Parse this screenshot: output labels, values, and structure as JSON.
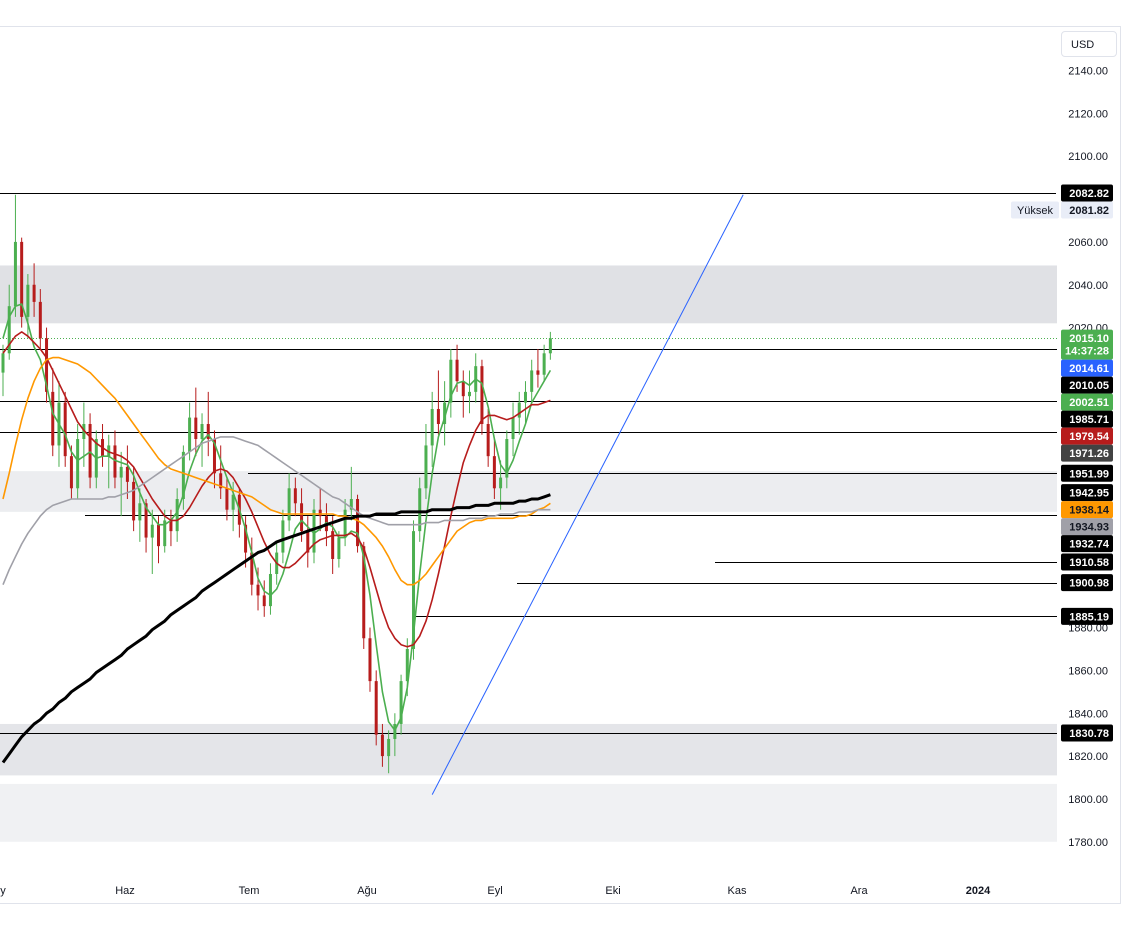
{
  "currency": "USD",
  "chart_data": {
    "type": "candlestick",
    "y_axis": {
      "min": 1780,
      "max": 2140,
      "ticks": [
        2140,
        2120,
        2100,
        2080,
        2060,
        2040,
        2020,
        2000,
        1980,
        1960,
        1940,
        1920,
        1900,
        1880,
        1860,
        1840,
        1820,
        1800,
        1780
      ],
      "tick_labels": [
        "2140.00",
        "2120.00",
        "2100.00",
        "",
        "2060.00",
        "2040.00",
        "2020.00",
        "",
        "",
        "",
        "",
        "",
        "",
        "1880.00",
        "1860.00",
        "1840.00",
        "1820.00",
        "1800.00",
        "1780.00"
      ]
    },
    "x_axis": {
      "labels": [
        "y",
        "Haz",
        "Tem",
        "Ağu",
        "Eyl",
        "Eki",
        "Kas",
        "Ara",
        "2024"
      ],
      "bold_labels": [
        "2024"
      ]
    },
    "candles": [
      [
        1999,
        2012,
        1988,
        2008
      ],
      [
        2008,
        2040,
        2005,
        2030
      ],
      [
        2030,
        2082,
        2025,
        2060
      ],
      [
        2060,
        2062,
        2020,
        2025
      ],
      [
        2025,
        2045,
        2015,
        2040
      ],
      [
        2040,
        2050,
        2025,
        2032
      ],
      [
        2032,
        2038,
        2010,
        2015
      ],
      [
        2015,
        2020,
        1985,
        1990
      ],
      [
        1990,
        2001,
        1960,
        1965
      ],
      [
        1965,
        1995,
        1955,
        1985
      ],
      [
        1985,
        1990,
        1955,
        1960
      ],
      [
        1960,
        1965,
        1940,
        1945
      ],
      [
        1945,
        1975,
        1940,
        1968
      ],
      [
        1968,
        1985,
        1955,
        1975
      ],
      [
        1975,
        1980,
        1945,
        1950
      ],
      [
        1950,
        1972,
        1945,
        1968
      ],
      [
        1968,
        1975,
        1955,
        1960
      ],
      [
        1960,
        1970,
        1945,
        1965
      ],
      [
        1965,
        1972,
        1945,
        1950
      ],
      [
        1950,
        1962,
        1932,
        1955
      ],
      [
        1955,
        1965,
        1940,
        1948
      ],
      [
        1948,
        1955,
        1925,
        1930
      ],
      [
        1930,
        1945,
        1920,
        1938
      ],
      [
        1938,
        1940,
        1915,
        1922
      ],
      [
        1922,
        1935,
        1905,
        1928
      ],
      [
        1928,
        1932,
        1910,
        1918
      ],
      [
        1918,
        1935,
        1915,
        1930
      ],
      [
        1930,
        1935,
        1918,
        1925
      ],
      [
        1925,
        1945,
        1920,
        1940
      ],
      [
        1940,
        1965,
        1935,
        1962
      ],
      [
        1962,
        1985,
        1958,
        1978
      ],
      [
        1978,
        1992,
        1960,
        1968
      ],
      [
        1968,
        1980,
        1955,
        1975
      ],
      [
        1975,
        1990,
        1960,
        1968
      ],
      [
        1968,
        1972,
        1945,
        1952
      ],
      [
        1952,
        1965,
        1940,
        1945
      ],
      [
        1945,
        1950,
        1930,
        1935
      ],
      [
        1935,
        1948,
        1925,
        1942
      ],
      [
        1942,
        1945,
        1922,
        1928
      ],
      [
        1928,
        1932,
        1908,
        1915
      ],
      [
        1915,
        1922,
        1895,
        1900
      ],
      [
        1900,
        1908,
        1888,
        1895
      ],
      [
        1895,
        1902,
        1885,
        1890
      ],
      [
        1890,
        1910,
        1886,
        1905
      ],
      [
        1905,
        1920,
        1900,
        1915
      ],
      [
        1915,
        1935,
        1910,
        1930
      ],
      [
        1930,
        1952,
        1925,
        1945
      ],
      [
        1945,
        1950,
        1932,
        1938
      ],
      [
        1938,
        1945,
        1920,
        1925
      ],
      [
        1925,
        1932,
        1908,
        1915
      ],
      [
        1915,
        1940,
        1910,
        1935
      ],
      [
        1935,
        1945,
        1925,
        1932
      ],
      [
        1932,
        1938,
        1918,
        1925
      ],
      [
        1925,
        1932,
        1905,
        1912
      ],
      [
        1912,
        1925,
        1908,
        1922
      ],
      [
        1922,
        1940,
        1918,
        1935
      ],
      [
        1935,
        1955,
        1930,
        1940
      ],
      [
        1940,
        1942,
        1915,
        1918
      ],
      [
        1918,
        1920,
        1870,
        1875
      ],
      [
        1875,
        1880,
        1850,
        1855
      ],
      [
        1855,
        1860,
        1825,
        1830
      ],
      [
        1830,
        1835,
        1815,
        1820
      ],
      [
        1820,
        1832,
        1812,
        1828
      ],
      [
        1828,
        1840,
        1820,
        1835
      ],
      [
        1835,
        1858,
        1830,
        1855
      ],
      [
        1855,
        1875,
        1848,
        1870
      ],
      [
        1870,
        1930,
        1865,
        1925
      ],
      [
        1925,
        1950,
        1920,
        1945
      ],
      [
        1945,
        1975,
        1940,
        1965
      ],
      [
        1965,
        1990,
        1955,
        1982
      ],
      [
        1982,
        2000,
        1970,
        1975
      ],
      [
        1975,
        1995,
        1965,
        1985
      ],
      [
        1985,
        2010,
        1978,
        2005
      ],
      [
        2005,
        2012,
        1990,
        1995
      ],
      [
        1995,
        2000,
        1978,
        1988
      ],
      [
        1988,
        2000,
        1980,
        1990
      ],
      [
        1990,
        2008,
        1985,
        2002
      ],
      [
        2002,
        2005,
        1970,
        1975
      ],
      [
        1975,
        1982,
        1955,
        1960
      ],
      [
        1960,
        1968,
        1940,
        1945
      ],
      [
        1945,
        1958,
        1935,
        1950
      ],
      [
        1950,
        1972,
        1945,
        1968
      ],
      [
        1968,
        1985,
        1960,
        1978
      ],
      [
        1978,
        1990,
        1970,
        1985
      ],
      [
        1985,
        1995,
        1975,
        1990
      ],
      [
        1990,
        2005,
        1985,
        2000
      ],
      [
        2000,
        2010,
        1992,
        1998
      ],
      [
        1998,
        2012,
        1995,
        2008
      ],
      [
        2008,
        2018,
        2005,
        2015
      ]
    ],
    "series": [
      {
        "color": "#4caf50",
        "values": [
          2015,
          2025,
          2030,
          2031,
          2022,
          2011,
          2005,
          1993,
          1980,
          1975,
          1970,
          1962,
          1958,
          1960,
          1962,
          1959,
          1960,
          1960,
          1958,
          1957,
          1956,
          1951,
          1943,
          1936,
          1932,
          1928,
          1928,
          1930,
          1934,
          1942,
          1953,
          1961,
          1967,
          1970,
          1966,
          1958,
          1950,
          1943,
          1935,
          1926,
          1915,
          1903,
          1897,
          1895,
          1898,
          1905,
          1915,
          1926,
          1930,
          1927,
          1924,
          1926,
          1929,
          1927,
          1922,
          1922,
          1925,
          1924,
          1913,
          1895,
          1872,
          1850,
          1836,
          1832,
          1838,
          1852,
          1877,
          1905,
          1930,
          1952,
          1969,
          1978,
          1988,
          1994,
          1995,
          1993,
          1996,
          1994,
          1983,
          1968,
          1956,
          1952,
          1958,
          1967,
          1975,
          1985,
          1990,
          1995,
          2000
        ]
      },
      {
        "color": "#b71c1c",
        "values": [
          2008,
          2012,
          2016,
          2018,
          2016,
          2013,
          2010,
          2006,
          2000,
          1994,
          1988,
          1982,
          1976,
          1972,
          1969,
          1966,
          1964,
          1962,
          1961,
          1960,
          1958,
          1955,
          1950,
          1945,
          1940,
          1936,
          1932,
          1930,
          1930,
          1932,
          1936,
          1941,
          1946,
          1950,
          1953,
          1954,
          1953,
          1950,
          1945,
          1940,
          1934,
          1927,
          1920,
          1914,
          1910,
          1908,
          1908,
          1910,
          1913,
          1916,
          1919,
          1921,
          1922,
          1923,
          1923,
          1923,
          1924,
          1922,
          1917,
          1908,
          1898,
          1888,
          1880,
          1875,
          1872,
          1871,
          1872,
          1876,
          1883,
          1893,
          1905,
          1918,
          1932,
          1945,
          1957,
          1965,
          1972,
          1977,
          1979,
          1979,
          1978,
          1977,
          1978,
          1980,
          1982,
          1984,
          1984,
          1985,
          1986
        ]
      },
      {
        "color": "#ff9800",
        "values": [
          1940,
          1952,
          1965,
          1977,
          1987,
          1995,
          2001,
          2005,
          2006,
          2006,
          2005,
          2004,
          2003,
          2001,
          1999,
          1996,
          1993,
          1990,
          1987,
          1983,
          1979,
          1975,
          1971,
          1967,
          1963,
          1959,
          1956,
          1954,
          1953,
          1952,
          1951,
          1950,
          1949,
          1948,
          1947,
          1946,
          1945,
          1944,
          1943,
          1942,
          1941,
          1939,
          1937,
          1935,
          1934,
          1933,
          1933,
          1933,
          1933,
          1933,
          1933,
          1933,
          1933,
          1933,
          1932,
          1932,
          1931,
          1930,
          1928,
          1925,
          1922,
          1918,
          1913,
          1907,
          1902,
          1900,
          1900,
          1902,
          1905,
          1909,
          1913,
          1917,
          1921,
          1925,
          1927,
          1929,
          1930,
          1930,
          1931,
          1931,
          1931,
          1931,
          1931,
          1932,
          1932,
          1933,
          1935,
          1936,
          1938
        ]
      },
      {
        "color": "#a0a0a8",
        "values": [
          1900,
          1907,
          1913,
          1919,
          1924,
          1928,
          1932,
          1935,
          1937,
          1938,
          1939,
          1940,
          1940,
          1940,
          1940,
          1940,
          1940,
          1941,
          1941,
          1942,
          1943,
          1944,
          1946,
          1948,
          1950,
          1952,
          1954,
          1956,
          1958,
          1960,
          1962,
          1964,
          1966,
          1967,
          1968,
          1969,
          1969,
          1969,
          1968,
          1967,
          1966,
          1965,
          1963,
          1961,
          1959,
          1957,
          1955,
          1953,
          1951,
          1949,
          1947,
          1945,
          1943,
          1941,
          1940,
          1938,
          1936,
          1934,
          1932,
          1931,
          1930,
          1929,
          1928,
          1928,
          1928,
          1928,
          1928,
          1928,
          1929,
          1929,
          1929,
          1930,
          1930,
          1930,
          1930,
          1931,
          1931,
          1931,
          1932,
          1932,
          1933,
          1933,
          1933,
          1934,
          1934,
          1934,
          1935,
          1935,
          1935
        ]
      },
      {
        "color": "#000000",
        "values": [
          1817,
          1821,
          1825,
          1829,
          1832,
          1835,
          1837,
          1840,
          1842,
          1845,
          1847,
          1850,
          1852,
          1854,
          1856,
          1859,
          1861,
          1863,
          1865,
          1867,
          1870,
          1872,
          1874,
          1876,
          1879,
          1881,
          1883,
          1886,
          1888,
          1890,
          1892,
          1894,
          1897,
          1899,
          1901,
          1903,
          1905,
          1907,
          1909,
          1911,
          1913,
          1915,
          1916,
          1918,
          1920,
          1921,
          1922,
          1923,
          1924,
          1925,
          1926,
          1927,
          1928,
          1929,
          1930,
          1931,
          1931,
          1932,
          1932,
          1932,
          1933,
          1933,
          1933,
          1933,
          1934,
          1934,
          1934,
          1934,
          1934,
          1935,
          1935,
          1935,
          1935,
          1936,
          1936,
          1936,
          1937,
          1937,
          1937,
          1938,
          1938,
          1938,
          1938,
          1939,
          1939,
          1940,
          1940,
          1941,
          1942
        ]
      }
    ],
    "zones": [
      {
        "from": 2022,
        "to": 2049,
        "color": "#e0e1e5"
      },
      {
        "from": 1934,
        "to": 1953,
        "color": "#ecedf0"
      },
      {
        "from": 1811,
        "to": 1835,
        "color": "#e4e5e9"
      },
      {
        "from": 1780,
        "to": 1807,
        "color": "#f0f1f3"
      }
    ],
    "horizontal_levels": [
      2082.82,
      2010.05,
      1985.71,
      1971.26,
      1951.99,
      1932.74,
      1910.58,
      1900.98,
      1885.19,
      1830.78
    ],
    "trendline": {
      "from": {
        "date_index": 69,
        "price": 1802
      },
      "to": {
        "date_index": 119,
        "price": 2082
      },
      "color": "#2962ff"
    },
    "price_tags": [
      {
        "value": "2082.82",
        "price": 2082.82,
        "bg": "#000000",
        "fg": "#ffffff"
      },
      {
        "value": "2081.82",
        "price": 2081.82,
        "bg": "#e9edf7",
        "fg": "#131722",
        "note": "Yüksek"
      },
      {
        "value": "2015.10",
        "extra": "14:37:28",
        "price": 2015.1,
        "bg": "#4caf50",
        "fg": "#ffffff"
      },
      {
        "value": "2014.61",
        "price": 2014.61,
        "bg": "#2962ff",
        "fg": "#ffffff"
      },
      {
        "value": "2010.05",
        "price": 2010.05,
        "bg": "#000000",
        "fg": "#ffffff"
      },
      {
        "value": "2002.51",
        "price": 2002.51,
        "bg": "#4caf50",
        "fg": "#ffffff"
      },
      {
        "value": "1985.71",
        "price": 1985.71,
        "bg": "#000000",
        "fg": "#ffffff"
      },
      {
        "value": "1979.54",
        "price": 1979.54,
        "bg": "#b71c1c",
        "fg": "#ffffff"
      },
      {
        "value": "1971.26",
        "price": 1971.26,
        "bg": "#424242",
        "fg": "#ffffff"
      },
      {
        "value": "1951.99",
        "price": 1951.99,
        "bg": "#000000",
        "fg": "#ffffff"
      },
      {
        "value": "1942.95",
        "price": 1942.95,
        "bg": "#000000",
        "fg": "#ffffff"
      },
      {
        "value": "1938.14",
        "price": 1938.14,
        "bg": "#ff9800",
        "fg": "#131722"
      },
      {
        "value": "1934.93",
        "price": 1934.93,
        "bg": "#a0a0a8",
        "fg": "#131722"
      },
      {
        "value": "1932.74",
        "price": 1932.74,
        "bg": "#000000",
        "fg": "#ffffff"
      },
      {
        "value": "1910.58",
        "price": 1910.58,
        "bg": "#000000",
        "fg": "#ffffff"
      },
      {
        "value": "1900.98",
        "price": 1900.98,
        "bg": "#000000",
        "fg": "#ffffff"
      },
      {
        "value": "1885.19",
        "price": 1885.19,
        "bg": "#000000",
        "fg": "#ffffff"
      },
      {
        "value": "1830.78",
        "price": 1830.78,
        "bg": "#000000",
        "fg": "#ffffff"
      }
    ],
    "colors": {
      "up": "#4caf50",
      "down": "#b71c1c"
    }
  }
}
